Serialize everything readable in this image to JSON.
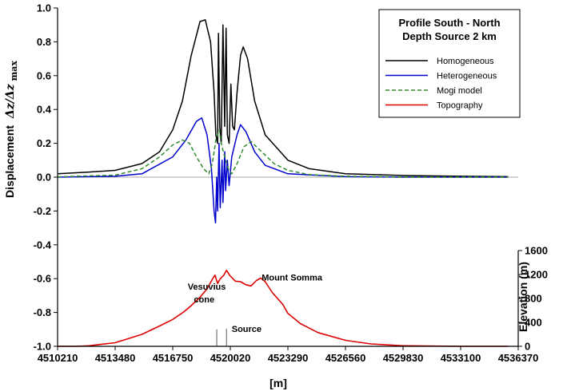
{
  "chart_data": {
    "type": "line",
    "title_lines": [
      "Profile South - North",
      "Depth Source 2 km"
    ],
    "xlabel": "[m]",
    "ylabel": "Displacement",
    "ylabel_math": "Δz/Δz",
    "ylabel_sub": "max",
    "y2label": "Elevation (m)",
    "xlim": [
      4510210,
      4536370
    ],
    "ylim": [
      -1.0,
      1.0
    ],
    "y2lim": [
      0,
      1600
    ],
    "x_ticks": [
      4510210,
      4513480,
      4516750,
      4520020,
      4523290,
      4526560,
      4529830,
      4533100,
      4536370
    ],
    "x_tick_labels": [
      "4510210",
      "4513480",
      "4516750",
      "4520020",
      "4523290",
      "4526560",
      "4529830",
      "4533100",
      "4536370"
    ],
    "y_ticks": [
      -1.0,
      -0.8,
      -0.6,
      -0.4,
      -0.2,
      0.0,
      0.2,
      0.4,
      0.6,
      0.8,
      1.0
    ],
    "y_tick_labels": [
      "-1.0",
      "-0.8",
      "-0.6",
      "-0.4",
      "-0.2",
      "0.0",
      "0.2",
      "0.4",
      "0.6",
      "0.8",
      "1.0"
    ],
    "y2_ticks": [
      0,
      400,
      800,
      1200,
      1600
    ],
    "y2_tick_labels": [
      "0",
      "400",
      "800",
      "1200",
      "1600"
    ],
    "legend_position": "top-right",
    "grid": false,
    "annotations": [
      {
        "text": "Vesuvius",
        "x": 4517600,
        "y": -0.665
      },
      {
        "text": "cone",
        "x": 4517950,
        "y": -0.74
      },
      {
        "text": "Mount Somma",
        "x": 4521800,
        "y": -0.61
      },
      {
        "text": "Source",
        "x": 4520100,
        "y": -0.915
      }
    ],
    "source_lines": [
      {
        "x": 4519250,
        "y_top": -0.9,
        "y_bottom": -1.0
      },
      {
        "x": 4519800,
        "y_top": -0.895,
        "y_bottom": -1.0
      }
    ],
    "series": [
      {
        "name": "Homogeneous",
        "color": "#000000",
        "dash": "solid",
        "axis": "left",
        "points": [
          [
            4510210,
            0.02
          ],
          [
            4512000,
            0.03
          ],
          [
            4513480,
            0.04
          ],
          [
            4515000,
            0.08
          ],
          [
            4516000,
            0.15
          ],
          [
            4516750,
            0.28
          ],
          [
            4517300,
            0.45
          ],
          [
            4517800,
            0.72
          ],
          [
            4518300,
            0.92
          ],
          [
            4518600,
            0.93
          ],
          [
            4518900,
            0.8
          ],
          [
            4519100,
            0.5
          ],
          [
            4519200,
            0.25
          ],
          [
            4519300,
            0.2
          ],
          [
            4519350,
            0.85
          ],
          [
            4519420,
            0.3
          ],
          [
            4519500,
            0.2
          ],
          [
            4519600,
            0.9
          ],
          [
            4519700,
            0.3
          ],
          [
            4519780,
            0.88
          ],
          [
            4519850,
            0.25
          ],
          [
            4519950,
            0.2
          ],
          [
            4520050,
            0.55
          ],
          [
            4520150,
            0.3
          ],
          [
            4520250,
            0.28
          ],
          [
            4520400,
            0.5
          ],
          [
            4520600,
            0.72
          ],
          [
            4520750,
            0.77
          ],
          [
            4521000,
            0.7
          ],
          [
            4521400,
            0.45
          ],
          [
            4522000,
            0.25
          ],
          [
            4523290,
            0.1
          ],
          [
            4524500,
            0.05
          ],
          [
            4526560,
            0.02
          ],
          [
            4529830,
            0.01
          ],
          [
            4533100,
            0.005
          ],
          [
            4535800,
            0.003
          ]
        ]
      },
      {
        "name": "Heterogeneous",
        "color": "#0000cc",
        "dash": "solid",
        "axis": "left",
        "points": [
          [
            4510210,
            0.0
          ],
          [
            4513480,
            0.005
          ],
          [
            4515000,
            0.02
          ],
          [
            4516750,
            0.12
          ],
          [
            4517500,
            0.22
          ],
          [
            4518100,
            0.33
          ],
          [
            4518400,
            0.35
          ],
          [
            4518700,
            0.25
          ],
          [
            4518950,
            0.05
          ],
          [
            4519100,
            -0.2
          ],
          [
            4519180,
            -0.27
          ],
          [
            4519250,
            0.0
          ],
          [
            4519300,
            -0.2
          ],
          [
            4519380,
            0.2
          ],
          [
            4519450,
            -0.18
          ],
          [
            4519550,
            0.1
          ],
          [
            4519600,
            -0.15
          ],
          [
            4519700,
            0.15
          ],
          [
            4519750,
            -0.08
          ],
          [
            4519850,
            0.1
          ],
          [
            4519950,
            -0.05
          ],
          [
            4520100,
            0.12
          ],
          [
            4520400,
            0.25
          ],
          [
            4520600,
            0.31
          ],
          [
            4520900,
            0.27
          ],
          [
            4521400,
            0.15
          ],
          [
            4522000,
            0.07
          ],
          [
            4523290,
            0.02
          ],
          [
            4526560,
            0.003
          ],
          [
            4529830,
            0.0
          ],
          [
            4535800,
            0.0
          ]
        ]
      },
      {
        "name": "Mogi model",
        "color": "#2e8b2e",
        "dash": "dashed",
        "axis": "left",
        "points": [
          [
            4510210,
            0.002
          ],
          [
            4513480,
            0.012
          ],
          [
            4515000,
            0.05
          ],
          [
            4516000,
            0.12
          ],
          [
            4516750,
            0.19
          ],
          [
            4517300,
            0.22
          ],
          [
            4517700,
            0.2
          ],
          [
            4518100,
            0.12
          ],
          [
            4518500,
            0.05
          ],
          [
            4518800,
            0.02
          ],
          [
            4519000,
            0.08
          ],
          [
            4519200,
            0.22
          ],
          [
            4519400,
            0.28
          ],
          [
            4519500,
            0.2
          ],
          [
            4519700,
            0.12
          ],
          [
            4519900,
            0.05
          ],
          [
            4520100,
            0.02
          ],
          [
            4520400,
            0.08
          ],
          [
            4520800,
            0.18
          ],
          [
            4521200,
            0.21
          ],
          [
            4521800,
            0.15
          ],
          [
            4522500,
            0.08
          ],
          [
            4523290,
            0.04
          ],
          [
            4524500,
            0.015
          ],
          [
            4526560,
            0.005
          ],
          [
            4529830,
            0.001
          ],
          [
            4535800,
            0.0
          ]
        ]
      },
      {
        "name": "Topography",
        "color": "#dd0000",
        "dash": "solid",
        "axis": "right",
        "points": [
          [
            4510210,
            0
          ],
          [
            4511300,
            0
          ],
          [
            4512000,
            10
          ],
          [
            4513480,
            60
          ],
          [
            4515000,
            200
          ],
          [
            4516000,
            340
          ],
          [
            4516750,
            450
          ],
          [
            4517400,
            580
          ],
          [
            4517800,
            680
          ],
          [
            4518300,
            820
          ],
          [
            4518700,
            960
          ],
          [
            4519000,
            1120
          ],
          [
            4519150,
            1190
          ],
          [
            4519300,
            1050
          ],
          [
            4519450,
            1130
          ],
          [
            4519650,
            1190
          ],
          [
            4519800,
            1270
          ],
          [
            4520000,
            1180
          ],
          [
            4520300,
            1090
          ],
          [
            4520600,
            1080
          ],
          [
            4520900,
            1030
          ],
          [
            4521200,
            1010
          ],
          [
            4521500,
            1100
          ],
          [
            4521750,
            1140
          ],
          [
            4522000,
            1080
          ],
          [
            4522400,
            900
          ],
          [
            4523000,
            700
          ],
          [
            4523290,
            550
          ],
          [
            4524000,
            380
          ],
          [
            4525000,
            230
          ],
          [
            4526560,
            100
          ],
          [
            4528000,
            40
          ],
          [
            4529830,
            10
          ],
          [
            4533100,
            0
          ],
          [
            4535800,
            0
          ]
        ]
      }
    ]
  }
}
